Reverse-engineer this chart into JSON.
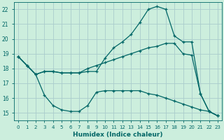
{
  "xlabel": "Humidex (Indice chaleur)",
  "bg_color": "#cceedd",
  "grid_color": "#aacccc",
  "line_color": "#006666",
  "xlim": [
    -0.5,
    23.5
  ],
  "ylim": [
    14.5,
    22.5
  ],
  "xticks": [
    0,
    1,
    2,
    3,
    4,
    5,
    6,
    7,
    8,
    9,
    10,
    11,
    12,
    13,
    14,
    15,
    16,
    17,
    18,
    19,
    20,
    21,
    22,
    23
  ],
  "yticks": [
    15,
    16,
    17,
    18,
    19,
    20,
    21,
    22
  ],
  "series": [
    {
      "x": [
        0,
        1,
        2,
        3,
        4,
        5,
        6,
        7,
        8,
        9,
        10,
        11,
        12,
        13,
        14,
        15,
        16,
        17,
        18,
        19,
        20,
        21,
        22,
        23
      ],
      "y": [
        18.8,
        18.2,
        17.6,
        17.8,
        17.8,
        17.7,
        17.7,
        17.7,
        17.8,
        17.8,
        18.7,
        19.4,
        19.8,
        20.3,
        21.1,
        22.0,
        22.2,
        22.0,
        20.2,
        19.8,
        19.8,
        16.3,
        15.1,
        14.8
      ]
    },
    {
      "x": [
        0,
        1,
        2,
        3,
        4,
        5,
        6,
        7,
        8,
        9,
        10,
        11,
        12,
        13,
        14,
        15,
        16,
        17,
        18,
        19,
        20,
        21,
        22,
        23
      ],
      "y": [
        18.8,
        18.2,
        17.6,
        17.8,
        17.8,
        17.7,
        17.7,
        17.7,
        18.0,
        18.2,
        18.4,
        18.6,
        18.8,
        19.0,
        19.2,
        19.4,
        19.5,
        19.7,
        19.7,
        19.0,
        18.9,
        16.3,
        15.1,
        14.8
      ]
    },
    {
      "x": [
        0,
        1,
        2,
        3,
        4,
        5,
        6,
        7,
        8,
        9,
        10,
        11,
        12,
        13,
        14,
        15,
        16,
        17,
        18,
        19,
        20,
        21,
        22,
        23
      ],
      "y": [
        18.8,
        18.2,
        17.6,
        16.2,
        15.5,
        15.2,
        15.1,
        15.1,
        15.5,
        16.4,
        16.5,
        16.5,
        16.5,
        16.5,
        16.5,
        16.3,
        16.2,
        16.0,
        15.8,
        15.6,
        15.4,
        15.2,
        15.1,
        14.8
      ]
    }
  ]
}
